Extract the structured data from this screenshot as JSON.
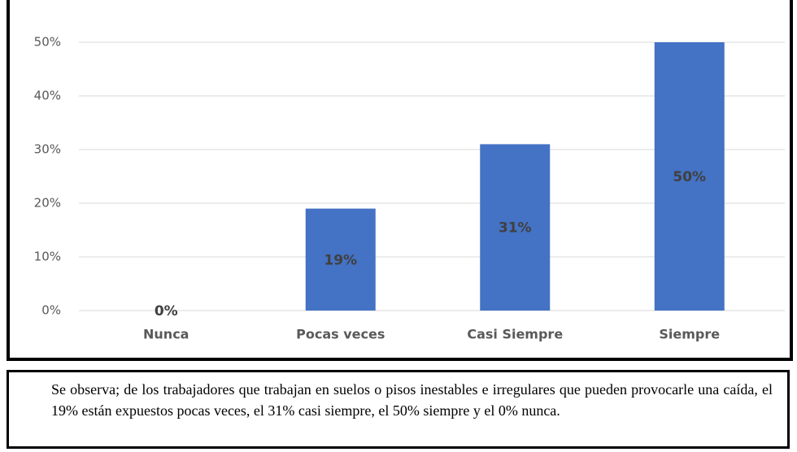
{
  "chart_data": {
    "type": "bar",
    "categories": [
      "Nunca",
      "Pocas veces",
      "Casi Siempre",
      "Siempre"
    ],
    "values": [
      0,
      19,
      31,
      50
    ],
    "value_labels": [
      "0%",
      "19%",
      "31%",
      "50%"
    ],
    "color": "#4472c4",
    "ylim": [
      0,
      50
    ],
    "yticks": [
      {
        "value": 0,
        "label": "0%"
      },
      {
        "value": 10,
        "label": "10%"
      },
      {
        "value": 20,
        "label": "20%"
      },
      {
        "value": 30,
        "label": "30%"
      },
      {
        "value": 40,
        "label": "40%"
      },
      {
        "value": 50,
        "label": "50%"
      }
    ],
    "grid": true
  },
  "caption": "Se observa; de los trabajadores que trabajan en suelos o pisos inestables e irregulares que pueden provocarle una caída, el 19% están expuestos pocas veces, el 31% casi siempre, el 50% siempre y el 0% nunca."
}
